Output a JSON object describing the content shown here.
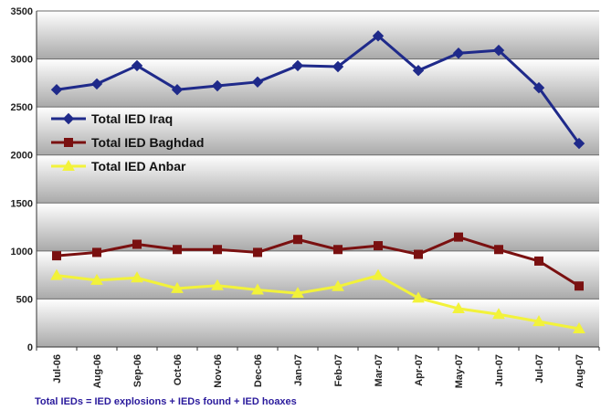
{
  "footnote": "Total IEDs = IED explosions + IEDs found + IED hoaxes",
  "colors": {
    "iraq": "#1f2a8a",
    "baghdad": "#7a1010",
    "anbar": "#f2f23a"
  },
  "chart_data": {
    "type": "line",
    "title": "",
    "xlabel": "",
    "ylabel": "",
    "categories": [
      "Jul-06",
      "Aug-06",
      "Sep-06",
      "Oct-06",
      "Nov-06",
      "Dec-06",
      "Jan-07",
      "Feb-07",
      "Mar-07",
      "Apr-07",
      "May-07",
      "Jun-07",
      "Jul-07",
      "Aug-07"
    ],
    "ylim": [
      0,
      3500
    ],
    "yticks": [
      0,
      500,
      1000,
      1500,
      2000,
      2500,
      3000,
      3500
    ],
    "grid": true,
    "legend_position": "left",
    "series": [
      {
        "name": "Total IED Iraq",
        "color_key": "iraq",
        "marker": "diamond",
        "values": [
          2680,
          2740,
          2930,
          2680,
          2720,
          2760,
          2930,
          2920,
          3240,
          2880,
          3060,
          3090,
          2700,
          2120
        ]
      },
      {
        "name": "Total IED Baghdad",
        "color_key": "baghdad",
        "marker": "square",
        "values": [
          950,
          985,
          1070,
          1015,
          1015,
          985,
          1120,
          1015,
          1055,
          965,
          1145,
          1015,
          895,
          635
        ]
      },
      {
        "name": "Total IED Anbar",
        "color_key": "anbar",
        "marker": "triangle",
        "values": [
          745,
          695,
          720,
          610,
          640,
          595,
          560,
          630,
          745,
          510,
          400,
          340,
          265,
          190
        ]
      }
    ]
  }
}
